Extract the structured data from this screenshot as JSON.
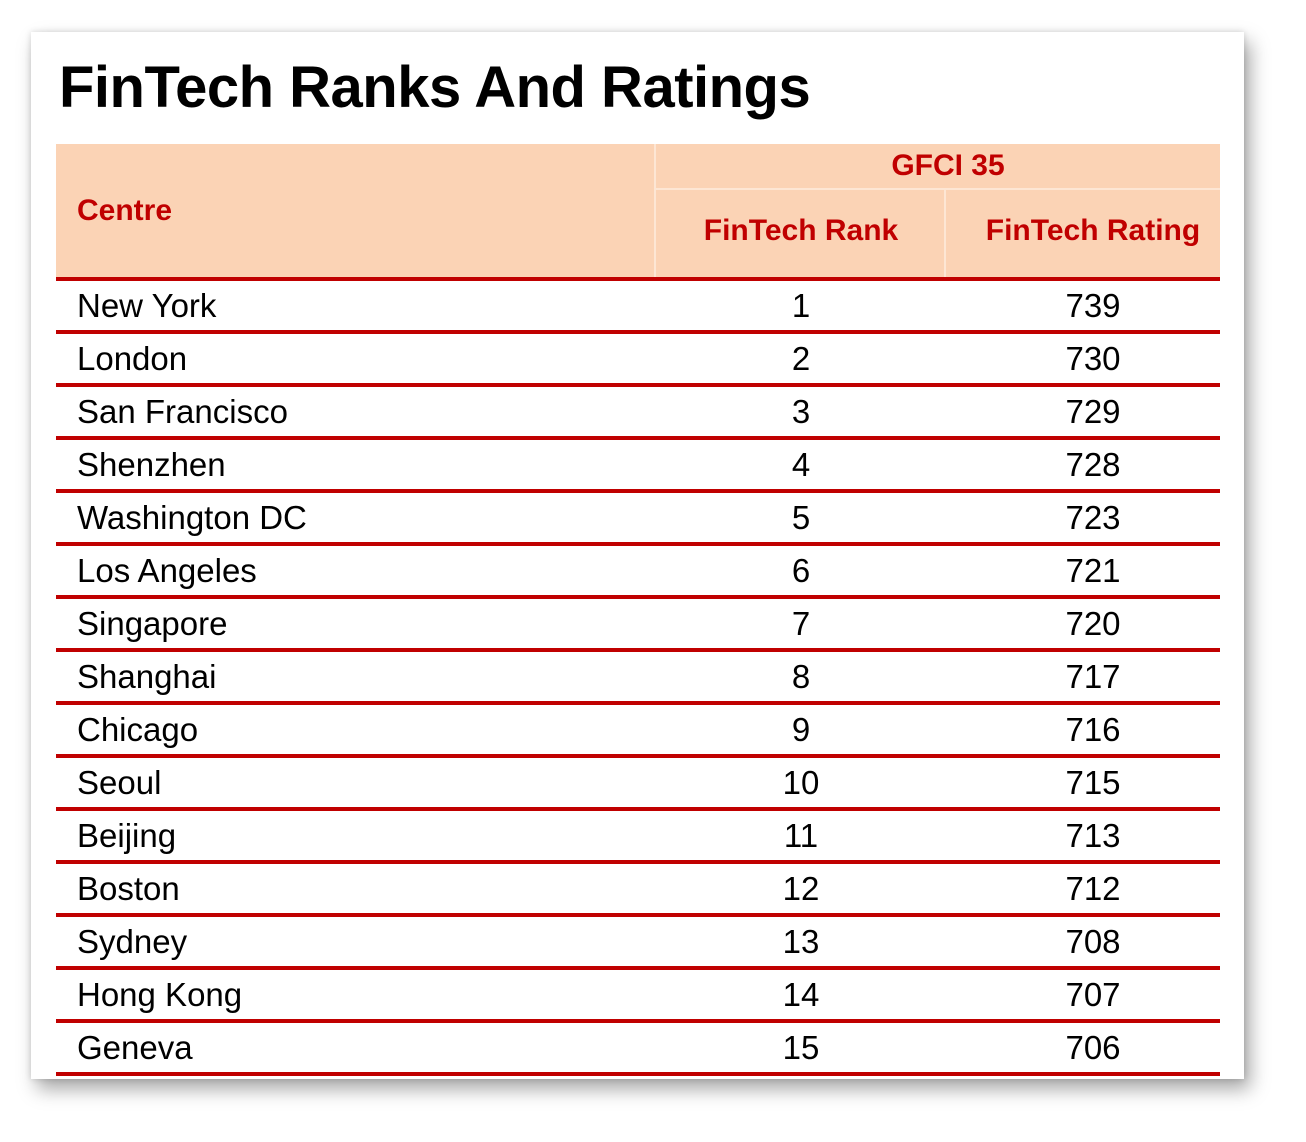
{
  "title": "FinTech Ranks And Ratings",
  "header": {
    "centre": "Centre",
    "group": "GFCI 35",
    "rank": "FinTech Rank",
    "rating": "FinTech Rating"
  },
  "colors": {
    "accent": "#c00000",
    "header_bg": "#fbd3b5"
  },
  "rows": [
    {
      "centre": "New York",
      "rank": "1",
      "rating": "739"
    },
    {
      "centre": "London",
      "rank": "2",
      "rating": "730"
    },
    {
      "centre": "San Francisco",
      "rank": "3",
      "rating": "729"
    },
    {
      "centre": "Shenzhen",
      "rank": "4",
      "rating": "728"
    },
    {
      "centre": "Washington DC",
      "rank": "5",
      "rating": "723"
    },
    {
      "centre": "Los Angeles",
      "rank": "6",
      "rating": "721"
    },
    {
      "centre": "Singapore",
      "rank": "7",
      "rating": "720"
    },
    {
      "centre": "Shanghai",
      "rank": "8",
      "rating": "717"
    },
    {
      "centre": "Chicago",
      "rank": "9",
      "rating": "716"
    },
    {
      "centre": "Seoul",
      "rank": "10",
      "rating": "715"
    },
    {
      "centre": "Beijing",
      "rank": "11",
      "rating": "713"
    },
    {
      "centre": "Boston",
      "rank": "12",
      "rating": "712"
    },
    {
      "centre": "Sydney",
      "rank": "13",
      "rating": "708"
    },
    {
      "centre": "Hong Kong",
      "rank": "14",
      "rating": "707"
    },
    {
      "centre": "Geneva",
      "rank": "15",
      "rating": "706"
    }
  ]
}
